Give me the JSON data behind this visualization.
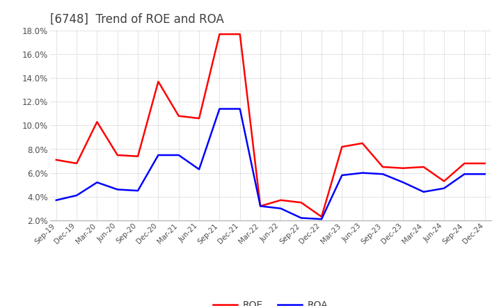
{
  "title": "[6748]  Trend of ROE and ROA",
  "title_color": "#404040",
  "background_color": "#ffffff",
  "plot_bg_color": "#ffffff",
  "grid_color": "#aaaaaa",
  "roe_color": "#ff0000",
  "roa_color": "#0000ff",
  "x_labels": [
    "Sep-19",
    "Dec-19",
    "Mar-20",
    "Jun-20",
    "Sep-20",
    "Dec-20",
    "Mar-21",
    "Jun-21",
    "Sep-21",
    "Dec-21",
    "Mar-22",
    "Jun-22",
    "Sep-22",
    "Dec-22",
    "Mar-23",
    "Jun-23",
    "Sep-23",
    "Dec-23",
    "Mar-24",
    "Jun-24",
    "Sep-24",
    "Dec-24"
  ],
  "roe_values": [
    7.1,
    6.8,
    10.3,
    7.5,
    7.4,
    13.7,
    10.8,
    10.6,
    17.7,
    17.7,
    3.2,
    3.7,
    3.5,
    2.3,
    8.2,
    8.5,
    6.5,
    6.4,
    6.5,
    5.3,
    6.8,
    6.8
  ],
  "roa_values": [
    3.7,
    4.1,
    5.2,
    4.6,
    4.5,
    7.5,
    7.5,
    6.3,
    11.4,
    11.4,
    3.2,
    3.0,
    2.2,
    2.1,
    5.8,
    6.0,
    5.9,
    5.2,
    4.4,
    4.7,
    5.9,
    5.9
  ],
  "ylim": [
    2.0,
    18.0
  ],
  "yticks": [
    2.0,
    4.0,
    6.0,
    8.0,
    10.0,
    12.0,
    14.0,
    16.0,
    18.0
  ],
  "legend_loc": "lower center",
  "legend_ncol": 2,
  "figwidth": 7.2,
  "figheight": 4.4,
  "dpi": 100
}
